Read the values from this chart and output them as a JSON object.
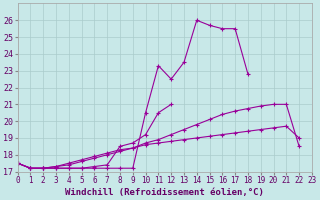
{
  "xlabel": "Windchill (Refroidissement éolien,°C)",
  "background_color": "#c8e8e8",
  "line_color": "#990099",
  "x": [
    0,
    1,
    2,
    3,
    4,
    5,
    6,
    7,
    8,
    9,
    10,
    11,
    12,
    13,
    14,
    15,
    16,
    17,
    18,
    19,
    20,
    21,
    22,
    23
  ],
  "line1": [
    17.5,
    17.2,
    17.2,
    17.2,
    17.2,
    17.2,
    17.2,
    17.2,
    17.2,
    17.2,
    20.5,
    23.3,
    22.5,
    23.5,
    26.0,
    25.7,
    25.5,
    25.5,
    22.8,
    null,
    null,
    null,
    null,
    null
  ],
  "line2": [
    17.5,
    17.2,
    17.2,
    17.2,
    17.2,
    17.2,
    17.3,
    17.4,
    18.5,
    18.7,
    19.2,
    20.5,
    21.0,
    null,
    null,
    null,
    null,
    null,
    null,
    null,
    null,
    null,
    null,
    null
  ],
  "line3": [
    17.5,
    17.2,
    17.2,
    17.3,
    17.4,
    17.6,
    17.8,
    18.0,
    18.2,
    18.4,
    18.7,
    18.9,
    19.2,
    19.5,
    19.8,
    20.1,
    20.4,
    20.6,
    20.75,
    20.9,
    21.0,
    21.0,
    18.5,
    null
  ],
  "line4": [
    17.5,
    17.2,
    17.2,
    17.3,
    17.5,
    17.7,
    17.9,
    18.1,
    18.3,
    18.4,
    18.6,
    18.7,
    18.8,
    18.9,
    19.0,
    19.1,
    19.2,
    19.3,
    19.4,
    19.5,
    19.6,
    19.7,
    19.0,
    null
  ],
  "ylim": [
    17,
    27
  ],
  "xlim": [
    0,
    23
  ],
  "yticks": [
    17,
    18,
    19,
    20,
    21,
    22,
    23,
    24,
    25,
    26
  ],
  "xticks": [
    0,
    1,
    2,
    3,
    4,
    5,
    6,
    7,
    8,
    9,
    10,
    11,
    12,
    13,
    14,
    15,
    16,
    17,
    18,
    19,
    20,
    21,
    22,
    23
  ],
  "markersize": 3,
  "linewidth": 0.8,
  "xlabel_fontsize": 6.5,
  "tick_fontsize": 5.5
}
